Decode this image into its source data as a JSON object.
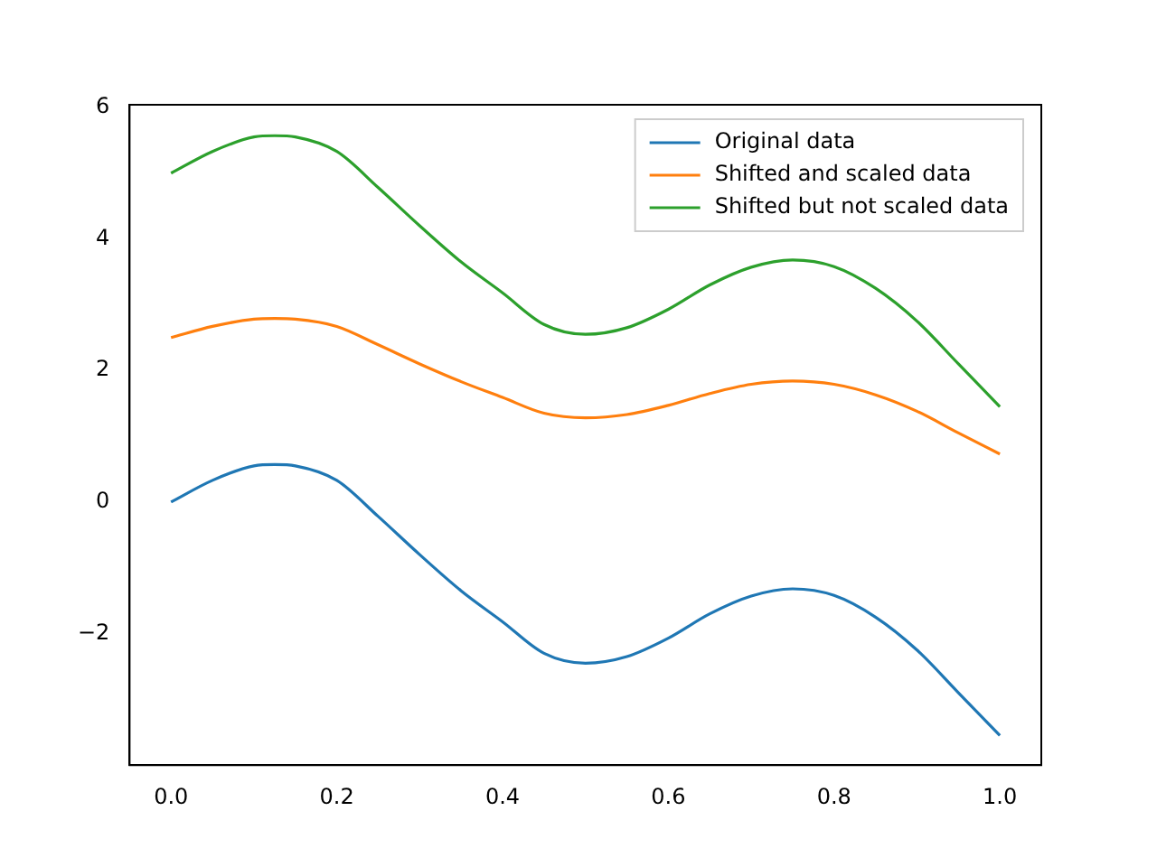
{
  "chart_data": {
    "type": "line",
    "x": [
      0,
      0.05,
      0.1,
      0.125,
      0.15,
      0.2,
      0.25,
      0.3,
      0.35,
      0.4,
      0.45,
      0.5,
      0.55,
      0.6,
      0.65,
      0.7,
      0.75,
      0.8,
      0.85,
      0.9,
      0.95,
      1.0
    ],
    "series": [
      {
        "name": "Original data",
        "color": "#1f77b4",
        "values": [
          0,
          0.33,
          0.55,
          0.57,
          0.55,
          0.33,
          -0.22,
          -0.8,
          -1.35,
          -1.82,
          -2.3,
          -2.45,
          -2.35,
          -2.07,
          -1.7,
          -1.43,
          -1.32,
          -1.42,
          -1.75,
          -2.25,
          -2.9,
          -3.55
        ]
      },
      {
        "name": "Shifted and scaled data",
        "color": "#ff7f0e",
        "values": [
          2.5,
          2.67,
          2.78,
          2.79,
          2.78,
          2.67,
          2.39,
          2.1,
          1.83,
          1.59,
          1.35,
          1.28,
          1.33,
          1.47,
          1.65,
          1.79,
          1.84,
          1.79,
          1.63,
          1.38,
          1.05,
          0.73
        ]
      },
      {
        "name": "Shifted but not scaled data",
        "color": "#2ca02c",
        "values": [
          5,
          5.33,
          5.55,
          5.57,
          5.55,
          5.33,
          4.78,
          4.2,
          3.65,
          3.18,
          2.7,
          2.55,
          2.65,
          2.93,
          3.3,
          3.57,
          3.68,
          3.58,
          3.25,
          2.75,
          2.1,
          1.45
        ]
      }
    ],
    "xlim": [
      -0.05,
      1.05
    ],
    "xticks": [
      {
        "value": 0,
        "label": "0.0"
      },
      {
        "value": 0.2,
        "label": "0.2"
      },
      {
        "value": 0.4,
        "label": "0.4"
      },
      {
        "value": 0.6,
        "label": "0.6"
      },
      {
        "value": 0.8,
        "label": "0.8"
      },
      {
        "value": 1.0,
        "label": "1.0"
      }
    ],
    "ylim": [
      -4,
      6.04
    ],
    "yticks": [
      {
        "value": -2,
        "label": "−2"
      },
      0,
      2,
      4,
      6
    ],
    "legend": "top right",
    "grid": false,
    "marker": "none",
    "line_style": "solid"
  }
}
